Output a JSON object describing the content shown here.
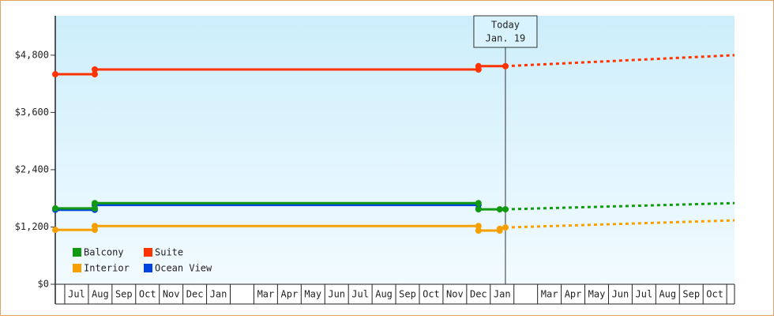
{
  "chart_data": {
    "type": "line",
    "categories": [
      "Jul",
      "Aug",
      "Sep",
      "Oct",
      "Nov",
      "Dec",
      "Jan",
      null,
      "Mar",
      "Apr",
      "May",
      "Jun",
      "Jul",
      "Aug",
      "Sep",
      "Oct",
      "Nov",
      "Dec",
      "Jan",
      null,
      "Mar",
      "Apr",
      "May",
      "Jun",
      "Jul",
      "Aug",
      "Sep",
      "Oct"
    ],
    "xlim": [
      -0.9,
      27.83
    ],
    "ylim": [
      0,
      5625
    ],
    "yticks": [
      {
        "value": 0,
        "label": "$0"
      },
      {
        "value": 1200,
        "label": "$1,200"
      },
      {
        "value": 2400,
        "label": "$2,400"
      },
      {
        "value": 3600,
        "label": "$3,600"
      },
      {
        "value": 4800,
        "label": "$4,800"
      }
    ],
    "today": {
      "x": 18.14,
      "label": "Today",
      "date": "Jan. 19"
    },
    "series": [
      {
        "name": "Balcony",
        "color": "#119911",
        "x": [
          -0.9,
          0.77,
          0.77,
          17.0,
          17.0,
          17.9,
          18.14
        ],
        "values": [
          1590,
          1590,
          1700,
          1700,
          1570,
          1570,
          1570
        ],
        "forecast_x": [
          18.14,
          27.83
        ],
        "forecast_values": [
          1570,
          1700
        ]
      },
      {
        "name": "Suite",
        "color": "#ff3300",
        "x": [
          -0.9,
          0.77,
          0.77,
          17.0,
          17.0,
          18.14
        ],
        "values": [
          4400,
          4400,
          4500,
          4500,
          4570,
          4570
        ],
        "forecast_x": [
          18.14,
          27.83
        ],
        "forecast_values": [
          4570,
          4800
        ]
      },
      {
        "name": "Interior",
        "color": "#f5a000",
        "x": [
          -0.9,
          0.77,
          0.77,
          17.0,
          17.0,
          17.9,
          17.9,
          18.14
        ],
        "values": [
          1140,
          1140,
          1220,
          1220,
          1125,
          1125,
          1160,
          1190
        ],
        "forecast_x": [
          18.14,
          27.83
        ],
        "forecast_values": [
          1190,
          1340
        ]
      },
      {
        "name": "Ocean View",
        "color": "#0044dd",
        "x": [
          -0.9,
          0.77,
          0.77,
          17.0,
          17.0
        ],
        "values": [
          1560,
          1560,
          1660,
          1660,
          1580
        ],
        "forecast_x": [],
        "forecast_values": []
      }
    ]
  }
}
